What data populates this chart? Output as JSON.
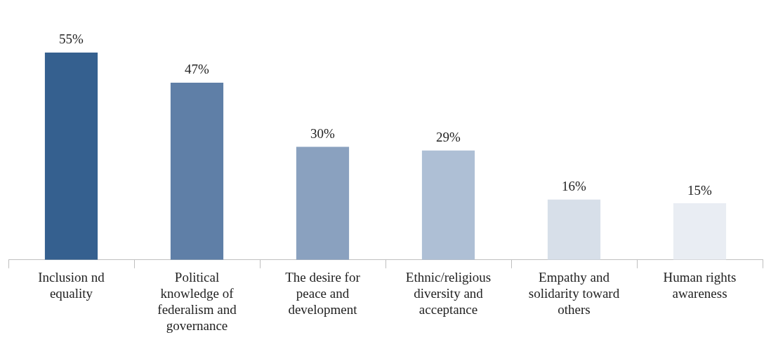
{
  "chart_data": {
    "type": "bar",
    "categories": [
      "Inclusion nd equality",
      "Political knowledge of federalism and governance",
      "The desire for peace and development",
      "Ethnic/religious diversity and acceptance",
      "Empathy and solidarity toward others",
      "Human rights awareness"
    ],
    "values": [
      55,
      47,
      30,
      29,
      16,
      15
    ],
    "colors": [
      "#35608f",
      "#5f7fa7",
      "#8aa1bf",
      "#aebfd5",
      "#d7dfe9",
      "#e9edf3"
    ],
    "data_labels": true,
    "value_labels": [
      "55%",
      "47%",
      "30%",
      "29%",
      "16%",
      "15%"
    ],
    "legend": false,
    "grid": false
  }
}
